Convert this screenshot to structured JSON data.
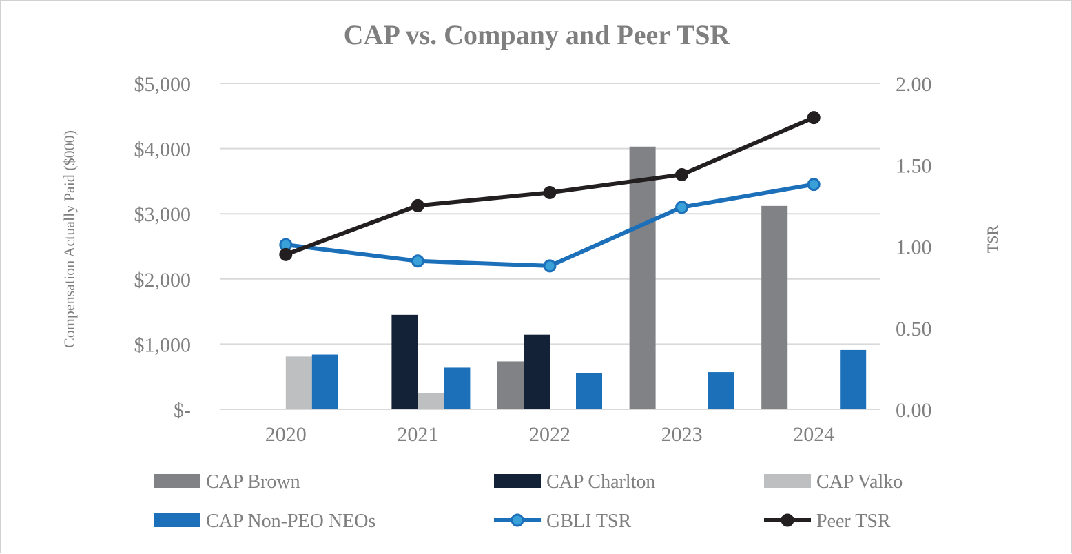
{
  "chart_data": {
    "type": "bar",
    "title": "CAP vs. Company and Peer TSR",
    "categories": [
      "2020",
      "2021",
      "2022",
      "2023",
      "2024"
    ],
    "ylabel": "Compensation Actually Paid ($000)",
    "y2label": "TSR",
    "ylim": [
      0,
      5000
    ],
    "y2lim": [
      0,
      2.0
    ],
    "y_ticks": [
      "$-",
      "$1,000",
      "$2,000",
      "$3,000",
      "$4,000",
      "$5,000"
    ],
    "y2_ticks": [
      "0.00",
      "0.50",
      "1.00",
      "1.50",
      "2.00"
    ],
    "grid": true,
    "legend_position": "bottom",
    "bar_series": [
      {
        "name": "CAP Brown",
        "color": "#818285",
        "values": [
          null,
          null,
          735,
          4030,
          3120
        ]
      },
      {
        "name": "CAP Charlton",
        "color": "#132236",
        "values": [
          null,
          1450,
          1145,
          null,
          null
        ]
      },
      {
        "name": "CAP Valko",
        "color": "#bebfc1",
        "values": [
          810,
          250,
          null,
          null,
          null
        ]
      },
      {
        "name": "CAP Non-PEO NEOs",
        "color": "#1b70b9",
        "values": [
          840,
          640,
          555,
          570,
          910
        ]
      }
    ],
    "line_series": [
      {
        "name": "GBLI TSR",
        "color": "#1b70b9",
        "marker_fill": "#3aa0d8",
        "values": [
          1.01,
          0.91,
          0.88,
          1.24,
          1.38
        ]
      },
      {
        "name": "Peer TSR",
        "color": "#231f20",
        "marker_fill": "#231f20",
        "values": [
          0.95,
          1.25,
          1.33,
          1.44,
          1.79
        ]
      }
    ]
  }
}
